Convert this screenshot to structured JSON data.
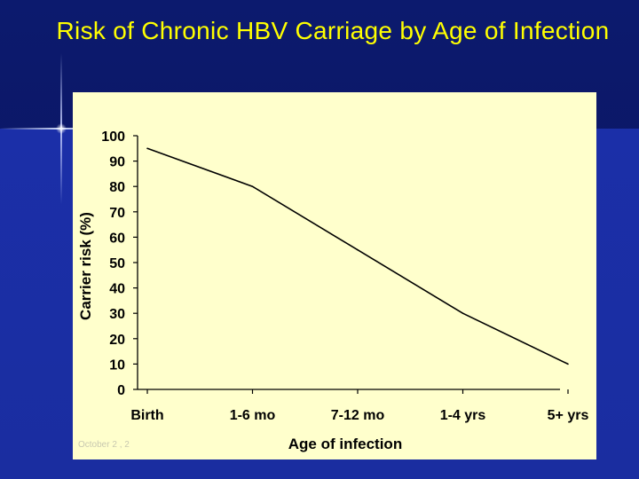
{
  "slide": {
    "title": "Risk of Chronic HBV Carriage by Age of Infection",
    "footer_date": "October 2 , 2"
  },
  "colors": {
    "background": "#0c1a6e",
    "title": "#ffff00",
    "plot_background": "#ffffcc",
    "line": "#000000"
  },
  "chart_data": {
    "type": "line",
    "title": "",
    "xlabel": "Age of infection",
    "ylabel": "Carrier risk (%)",
    "categories": [
      "Birth",
      "1-6 mo",
      "7-12 mo",
      "1-4 yrs",
      "5+ yrs"
    ],
    "ylim": [
      0,
      100
    ],
    "yticks": [
      "0",
      "10",
      "20",
      "30",
      "40",
      "50",
      "60",
      "70",
      "80",
      "90",
      "100"
    ],
    "series": [
      {
        "values": [
          95,
          80,
          55,
          30,
          10
        ]
      }
    ],
    "grid": false,
    "legend": "none"
  }
}
